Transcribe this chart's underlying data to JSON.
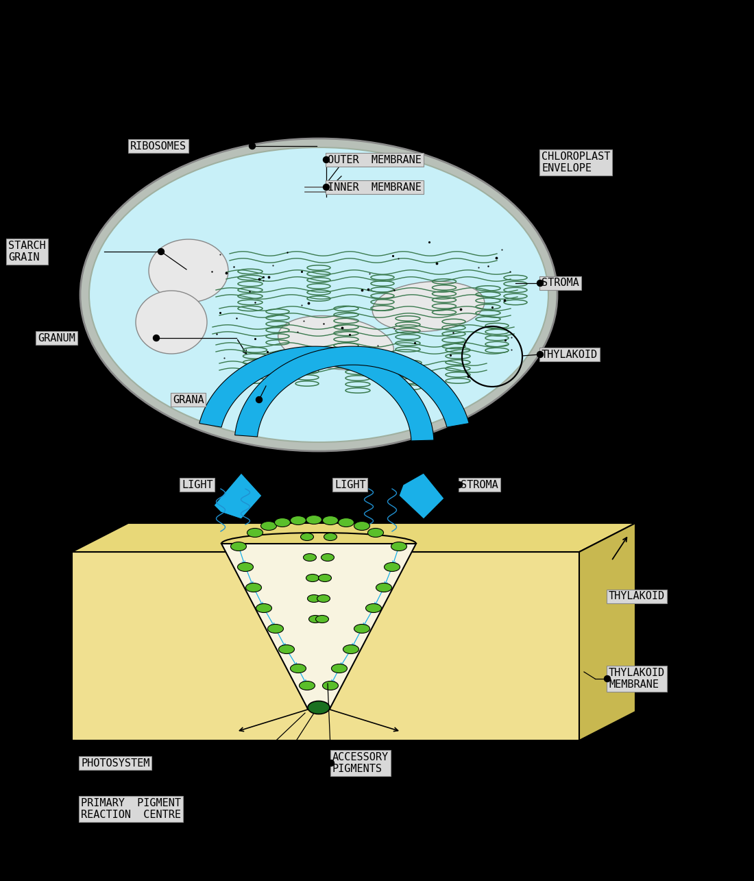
{
  "bg_color": "#000000",
  "cell_fill": "#c8f0f8",
  "cell_outer": "#b8c8b8",
  "thylakoid_color": "#3a7a4e",
  "starch_fill": "#e8e8e8",
  "blue_color": "#1ab0e8",
  "box_fill": "#d8d8d8",
  "box_edge": "#888888",
  "membrane_fill": "#f0e090",
  "membrane_top": "#e8d878",
  "membrane_right": "#c8b850",
  "green_pigment": "#5abf2a",
  "dark_green": "#1a7020",
  "funnel_fill": "#f8f4e0",
  "labels": {
    "outer_membrane": "OUTER  MEMBRANE",
    "inner_membrane": "INNER  MEMBRANE",
    "chloroplast_envelope": "CHLOROPLAST\nENVELOPE",
    "ribosomes": "RIBOSOMES",
    "starch_grain": "STARCH\nGRAIN",
    "stroma": "STROMA",
    "granum": "GRANUM",
    "thylakoid": "THYLAKOID",
    "grana": "GRANA",
    "light1": "LIGHT",
    "light2": "LIGHT",
    "stroma2": "STROMA",
    "thylakoid2": "THYLAKOID",
    "thylakoid_membrane": "THYLAKOID\nMEMBRANE",
    "photosystem": "PHOTOSYSTEM",
    "primary_pigment": "PRIMARY  PIGMENT\nREACTION  CENTRE",
    "accessory_pigments": "ACCESSORY\nPIGMENTS"
  },
  "fontsize": 11
}
